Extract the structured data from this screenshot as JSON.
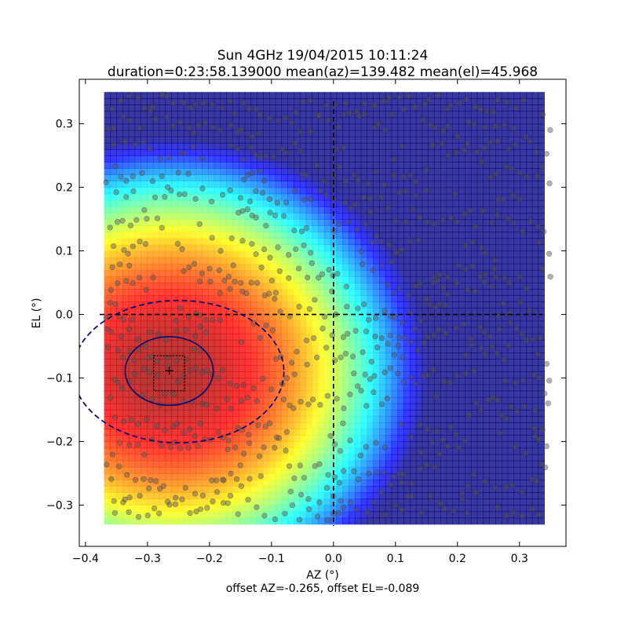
{
  "chart_data": {
    "type": "heatmap",
    "title": "Sun 4GHz 19/04/2015 10:11:24",
    "subtitle": "duration=0:23:58.139000 mean(az)=139.482 mean(el)=45.968",
    "xlabel": "AZ (°)",
    "ylabel": "EL (°)",
    "footer": "offset AZ=-0.265, offset EL=-0.089",
    "xlim": [
      -0.41,
      0.375
    ],
    "ylim": [
      -0.365,
      0.37
    ],
    "x_ticks": [
      -0.4,
      -0.3,
      -0.2,
      -0.1,
      0.0,
      0.1,
      0.2,
      0.3
    ],
    "x_tick_labels": [
      "−0.4",
      "−0.3",
      "−0.2",
      "−0.1",
      "0.0",
      "0.1",
      "0.2",
      "0.3"
    ],
    "y_ticks": [
      -0.3,
      -0.2,
      -0.1,
      0.0,
      0.1,
      0.2,
      0.3
    ],
    "y_tick_labels": [
      "−0.3",
      "−0.2",
      "−0.1",
      "0.0",
      "0.1",
      "0.2",
      "0.3"
    ],
    "heatmap_extent": {
      "x": [
        -0.37,
        0.34
      ],
      "y": [
        -0.33,
        0.35
      ]
    },
    "heatmap_peak": {
      "x": -0.265,
      "y": -0.089
    },
    "colormap": "jet",
    "grid": false,
    "crosshair": {
      "x": 0.0,
      "y": 0.0,
      "style": "dashed"
    },
    "beam_fit": {
      "center": [
        -0.265,
        -0.089
      ],
      "inner_ellipse_radii": [
        0.071,
        0.054
      ],
      "outer_ellipse_center": [
        -0.25,
        -0.09
      ],
      "outer_ellipse_radii": [
        0.17,
        0.112
      ]
    },
    "peak_box": {
      "x": [
        -0.29,
        -0.24
      ],
      "y": [
        -0.12,
        -0.065
      ]
    },
    "peak_marker": {
      "x": -0.265,
      "y": -0.089,
      "symbol": "+",
      "color": "#ff0000"
    },
    "scan_points": {
      "count_note": "",
      "rows_el": [
        0.33,
        0.3,
        0.26,
        0.22,
        0.185,
        0.15,
        0.105,
        0.07,
        0.045,
        0.005,
        -0.03,
        -0.06,
        -0.1,
        -0.14,
        -0.18,
        -0.21,
        -0.25,
        -0.28,
        -0.305
      ],
      "color": "#555555"
    }
  }
}
